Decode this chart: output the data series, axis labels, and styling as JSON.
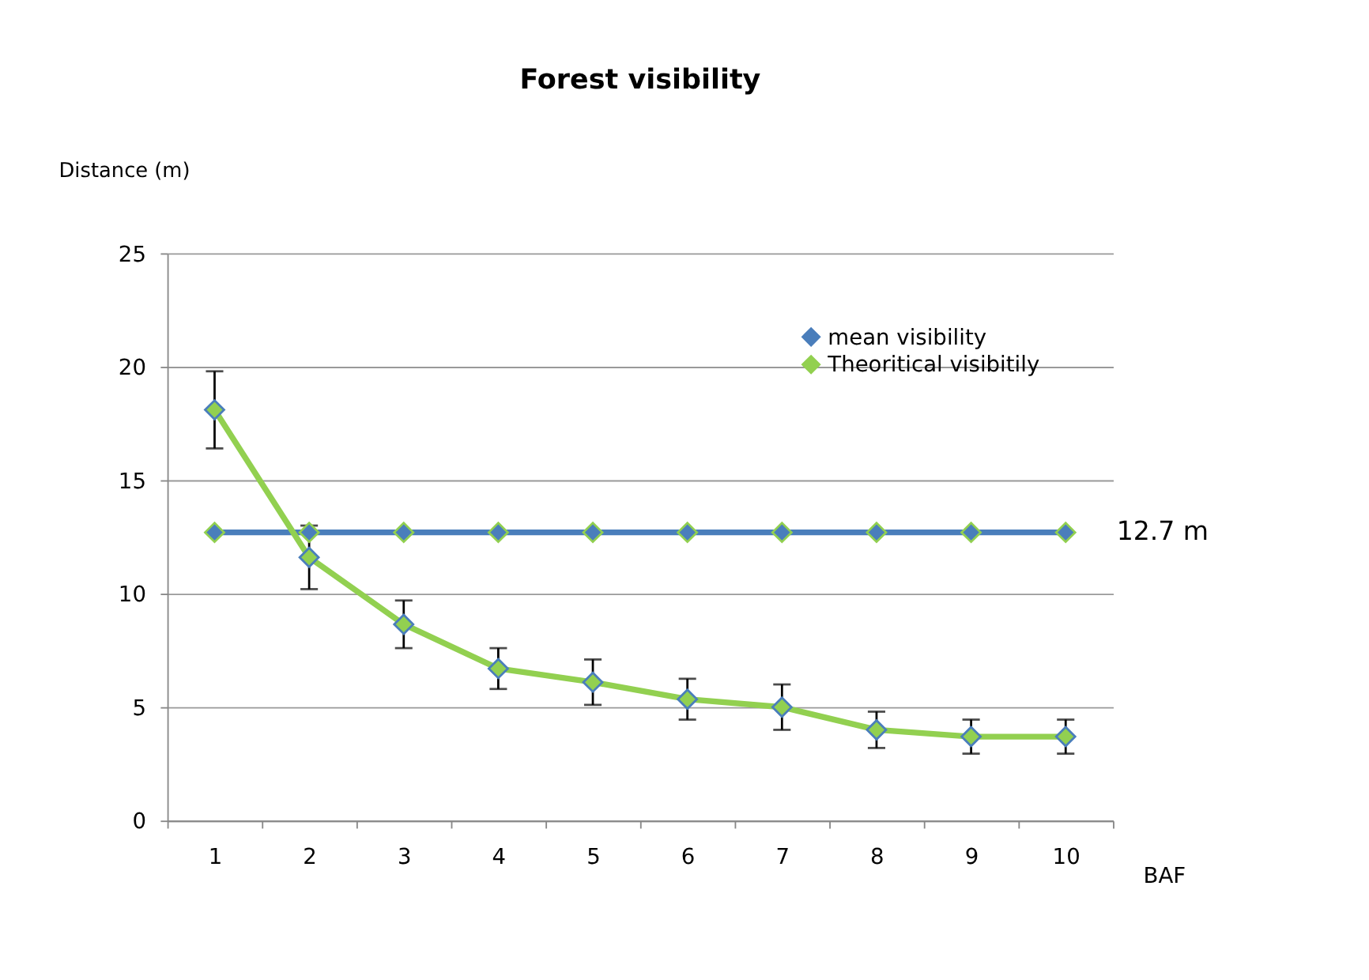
{
  "chart_data": {
    "type": "line",
    "title": "Forest visibility",
    "xlabel": "BAF",
    "ylabel": "Distance (m)",
    "categories": [
      "1",
      "2",
      "3",
      "4",
      "5",
      "6",
      "7",
      "8",
      "9",
      "10"
    ],
    "series": [
      {
        "name": "mean visibility",
        "color": "#4a7ebb",
        "values": [
          12.7,
          12.7,
          12.7,
          12.7,
          12.7,
          12.7,
          12.7,
          12.7,
          12.7,
          12.7
        ]
      },
      {
        "name": "Theoritical visibitily",
        "color": "#92d050",
        "values": [
          18.1,
          11.6,
          8.65,
          6.7,
          6.1,
          5.35,
          5.0,
          4.0,
          3.7,
          3.7
        ],
        "errors": [
          1.7,
          1.4,
          1.05,
          0.9,
          1.0,
          0.9,
          1.0,
          0.8,
          0.75,
          0.75
        ]
      }
    ],
    "annotations": [
      {
        "text": "12.7 m",
        "x": "10",
        "y": 12.7
      }
    ],
    "ylim": [
      0,
      25
    ],
    "yticks": [
      0,
      5,
      10,
      15,
      20,
      25
    ],
    "grid": "y",
    "legend": "top right",
    "marker": "diamond",
    "line_style": "solid"
  }
}
